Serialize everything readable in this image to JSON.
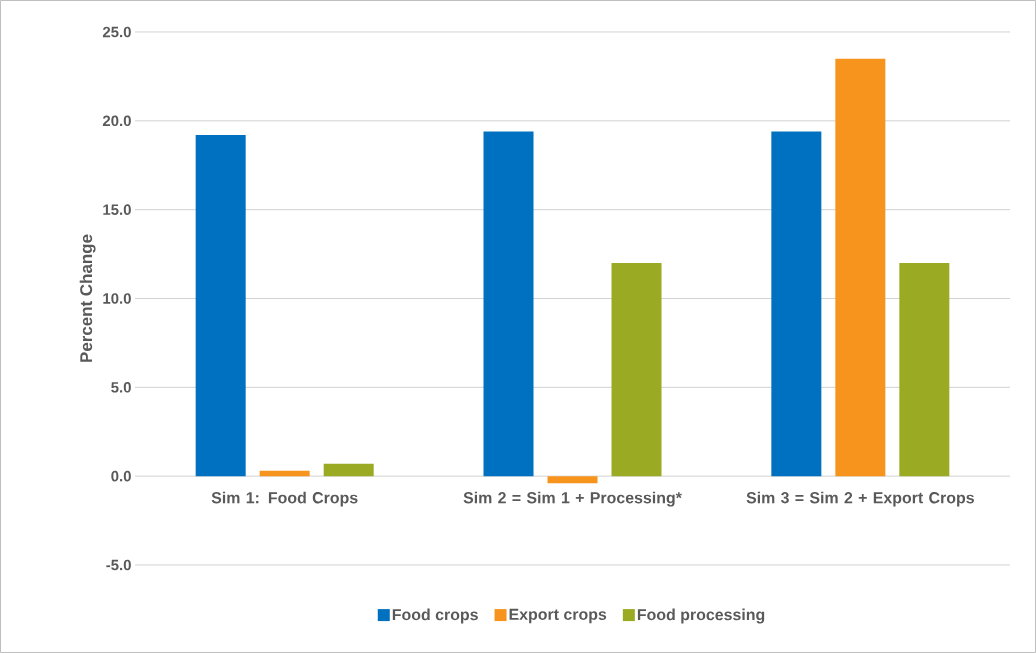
{
  "chart_data": {
    "type": "bar",
    "ylabel": "Percent Change",
    "categories": [
      "Sim 1: Food Crops",
      "Sim 2 = Sim 1 + Processing*",
      "Sim 3 = Sim 2 + Export Crops"
    ],
    "series": [
      {
        "name": "Food crops",
        "color": "#0070c0",
        "values": [
          19.2,
          19.4,
          19.4
        ]
      },
      {
        "name": "Export crops",
        "color": "#f7941d",
        "values": [
          0.3,
          -0.4,
          23.5
        ]
      },
      {
        "name": "Food processing",
        "color": "#9aaa22",
        "values": [
          0.7,
          12.0,
          12.0
        ]
      }
    ],
    "ylim": [
      -5,
      25
    ],
    "yticks": [
      {
        "value": -5,
        "label": "-5.0"
      },
      {
        "value": 0,
        "label": "0.0"
      },
      {
        "value": 5,
        "label": "5.0"
      },
      {
        "value": 10,
        "label": "10.0"
      },
      {
        "value": 15,
        "label": "15.0"
      },
      {
        "value": 20,
        "label": "20.0"
      },
      {
        "value": 25,
        "label": "25.0"
      }
    ],
    "grid": "y",
    "legend": "bottom"
  }
}
